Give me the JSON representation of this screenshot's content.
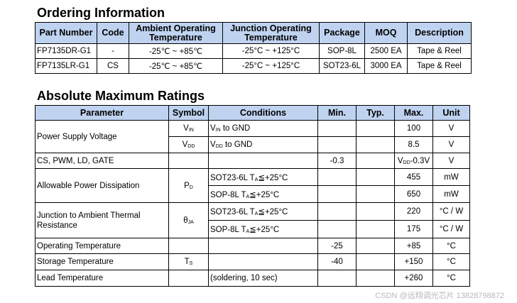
{
  "ordering": {
    "title": "Ordering Information",
    "headers": [
      "Part Number",
      "Code",
      "Ambient Operating Temperature",
      "Junction Operating Temperature",
      "Package",
      "MOQ",
      "Description"
    ],
    "rows": [
      [
        "FP7135DR-G1",
        "-",
        "-25℃ ~ +85℃",
        "-25°C ~ +125°C",
        "SOP-8L",
        "2500 EA",
        "Tape & Reel"
      ],
      [
        "FP7135LR-G1",
        "CS",
        "-25℃ ~ +85℃",
        "-25°C ~ +125°C",
        "SOT23-6L",
        "3000 EA",
        "Tape & Reel"
      ]
    ]
  },
  "ratings": {
    "title": "Absolute Maximum Ratings",
    "headers": [
      "Parameter",
      "Symbol",
      "Conditions",
      "Min.",
      "Typ.",
      "Max.",
      "Unit"
    ],
    "supply_voltage": {
      "param": "Power Supply Voltage",
      "vin_sym": "V",
      "vin_sub": "IN",
      "vin_cond_sub": "IN",
      "vin_cond": " to GND",
      "vin_max": "100",
      "vin_unit": "V",
      "vdd_sym": "V",
      "vdd_sub": "DD",
      "vdd_cond_sub": "DD",
      "vdd_cond": " to GND",
      "vdd_max": "8.5",
      "vdd_unit": "V"
    },
    "cs_row": {
      "param": "CS, PWM, LD, GATE",
      "min": "-0.3",
      "max_v": "V",
      "max_sub": "DD",
      "max_rest": "-0.3V",
      "unit": "V"
    },
    "dissipation": {
      "param": "Allowable Power Dissipation",
      "sym": "P",
      "sym_sub": "D",
      "r1_cond_a": "SOT23-6L  T",
      "r1_cond_sub": "A",
      "r1_cond_b": "≦+25°C",
      "r1_max": "455",
      "r1_unit": "mW",
      "r2_cond_a": "SOP-8L  T",
      "r2_cond_sub": "A",
      "r2_cond_b": "≦+25°C",
      "r2_max": "650",
      "r2_unit": "mW"
    },
    "thermal": {
      "param": "Junction to Ambient Thermal Resistance",
      "sym": "θ",
      "sym_sub": "JA",
      "r1_cond_a": "SOT23-6L  T",
      "r1_cond_sub": "A",
      "r1_cond_b": "≦+25°C",
      "r1_max": "220",
      "r1_unit": "°C / W",
      "r2_cond_a": "SOP-8L  T",
      "r2_cond_sub": "A",
      "r2_cond_b": "≦+25°C",
      "r2_max": "175",
      "r2_unit": "°C / W"
    },
    "operating": {
      "param": "Operating Temperature",
      "min": "-25",
      "max": "+85",
      "unit": "°C"
    },
    "storage": {
      "param": "Storage Temperature",
      "sym": "T",
      "sym_sub": "S",
      "min": "-40",
      "max": "+150",
      "unit": "°C"
    },
    "lead": {
      "param": "Lead Temperature",
      "cond": "(soldering, 10 sec)",
      "max": "+260",
      "unit": "°C"
    }
  },
  "watermark": "CSDN @远翔调光芯片 13828798872"
}
